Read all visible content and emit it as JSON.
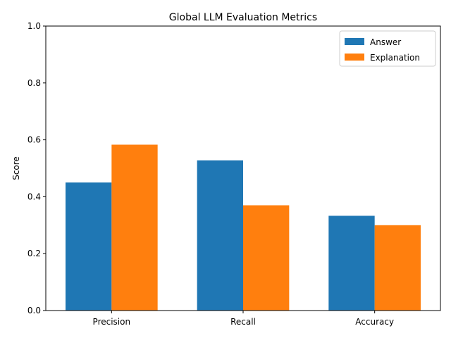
{
  "chart_data": {
    "type": "bar",
    "title": "Global LLM Evaluation Metrics",
    "xlabel": "",
    "ylabel": "Score",
    "ylim": [
      0,
      1
    ],
    "yticks": [
      "0.0",
      "0.2",
      "0.4",
      "0.6",
      "0.8",
      "1.0"
    ],
    "categories": [
      "Precision",
      "Recall",
      "Accuracy"
    ],
    "series": [
      {
        "name": "Answer",
        "color": "#1f77b4",
        "values": [
          0.45,
          0.528,
          0.333
        ]
      },
      {
        "name": "Explanation",
        "color": "#ff7f0e",
        "values": [
          0.583,
          0.37,
          0.3
        ]
      }
    ],
    "legend": "top-right",
    "grid": false
  }
}
